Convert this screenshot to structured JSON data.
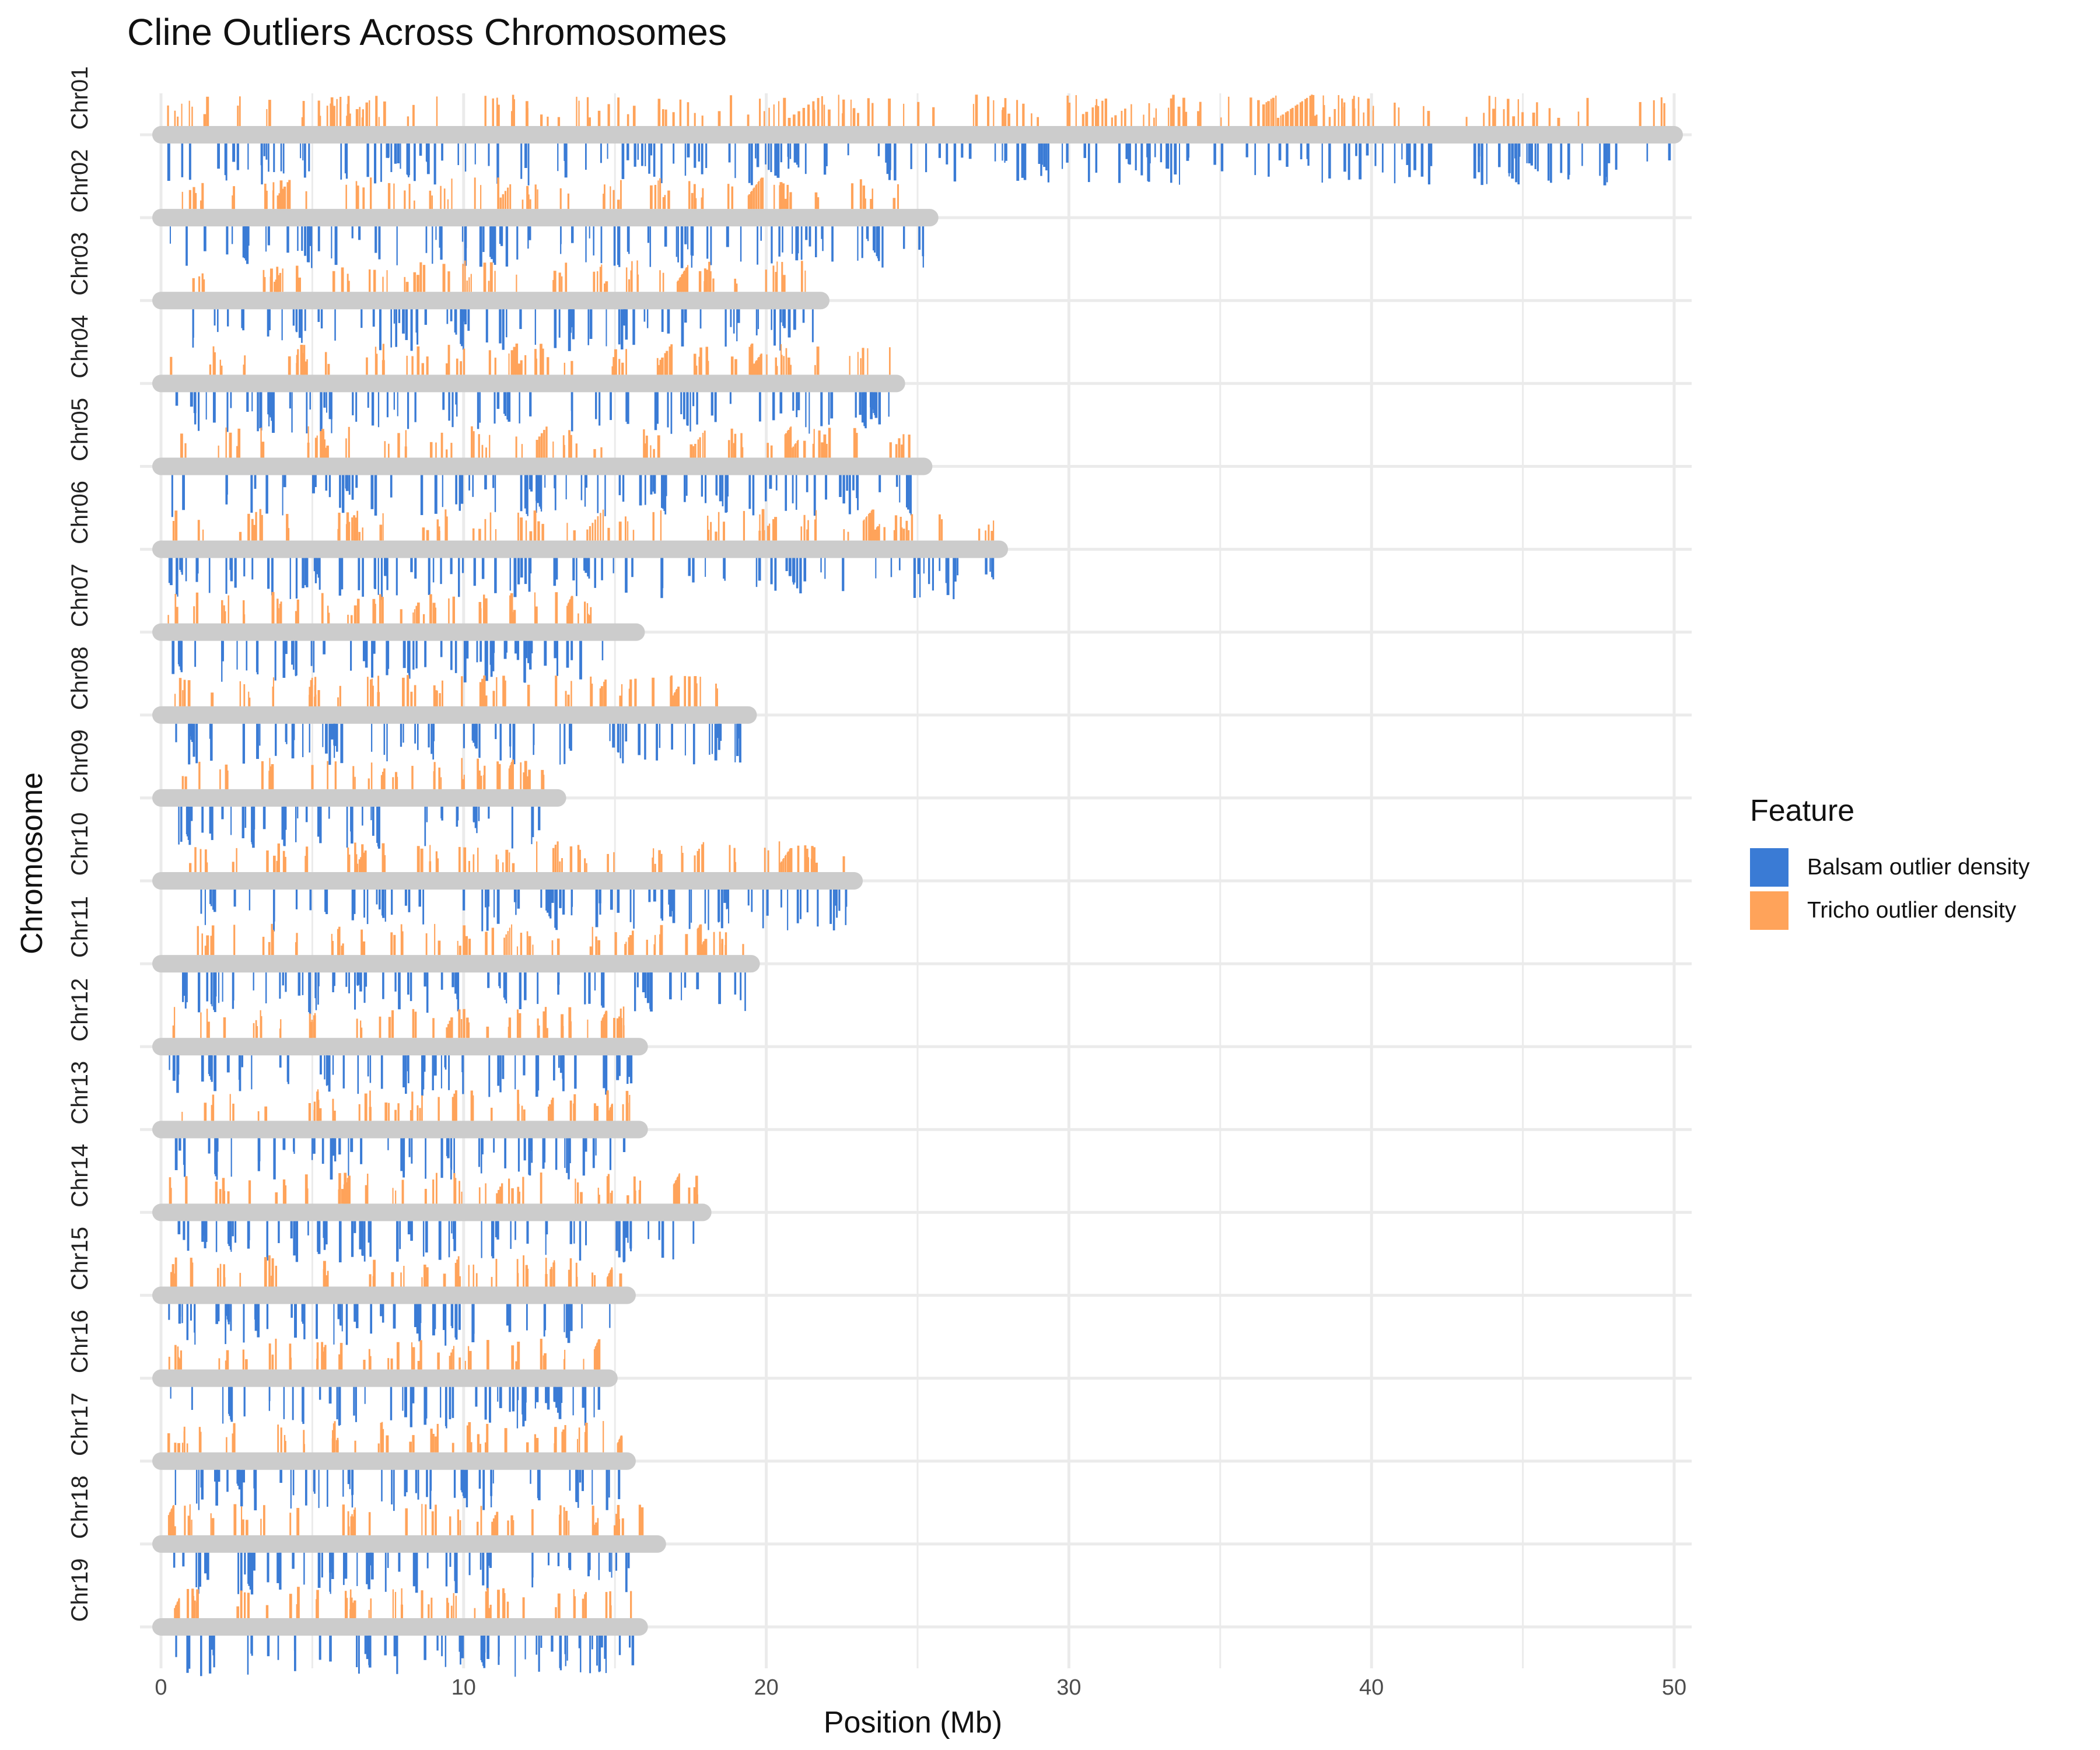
{
  "chart_data": {
    "type": "ideogram-density",
    "title": "Cline Outliers Across Chromosomes",
    "xlabel": "Position (Mb)",
    "ylabel": "Chromosome",
    "xlim": [
      0,
      50
    ],
    "x_ticks": [
      0,
      10,
      20,
      30,
      40,
      50
    ],
    "grid": true,
    "legend": {
      "title": "Feature",
      "position": "right"
    },
    "series": [
      {
        "name": "Balsam outlier density",
        "color": "#3a7bd5",
        "direction": "below"
      },
      {
        "name": "Tricho outlier density",
        "color": "#ffa35a",
        "direction": "above"
      }
    ],
    "chromosomes": [
      {
        "name": "Chr01",
        "length": 50.0
      },
      {
        "name": "Chr02",
        "length": 25.4
      },
      {
        "name": "Chr03",
        "length": 21.8
      },
      {
        "name": "Chr04",
        "length": 24.3
      },
      {
        "name": "Chr05",
        "length": 25.2
      },
      {
        "name": "Chr06",
        "length": 27.7
      },
      {
        "name": "Chr07",
        "length": 15.7
      },
      {
        "name": "Chr08",
        "length": 19.4
      },
      {
        "name": "Chr09",
        "length": 13.1
      },
      {
        "name": "Chr10",
        "length": 22.9
      },
      {
        "name": "Chr11",
        "length": 19.5
      },
      {
        "name": "Chr12",
        "length": 15.8
      },
      {
        "name": "Chr13",
        "length": 15.8
      },
      {
        "name": "Chr14",
        "length": 17.9
      },
      {
        "name": "Chr15",
        "length": 15.4
      },
      {
        "name": "Chr16",
        "length": 14.8
      },
      {
        "name": "Chr17",
        "length": 15.4
      },
      {
        "name": "Chr18",
        "length": 16.4
      },
      {
        "name": "Chr19",
        "length": 15.8
      }
    ],
    "colors": {
      "chromosome_bar": "#cccccc",
      "grid": "#ebebeb"
    }
  }
}
